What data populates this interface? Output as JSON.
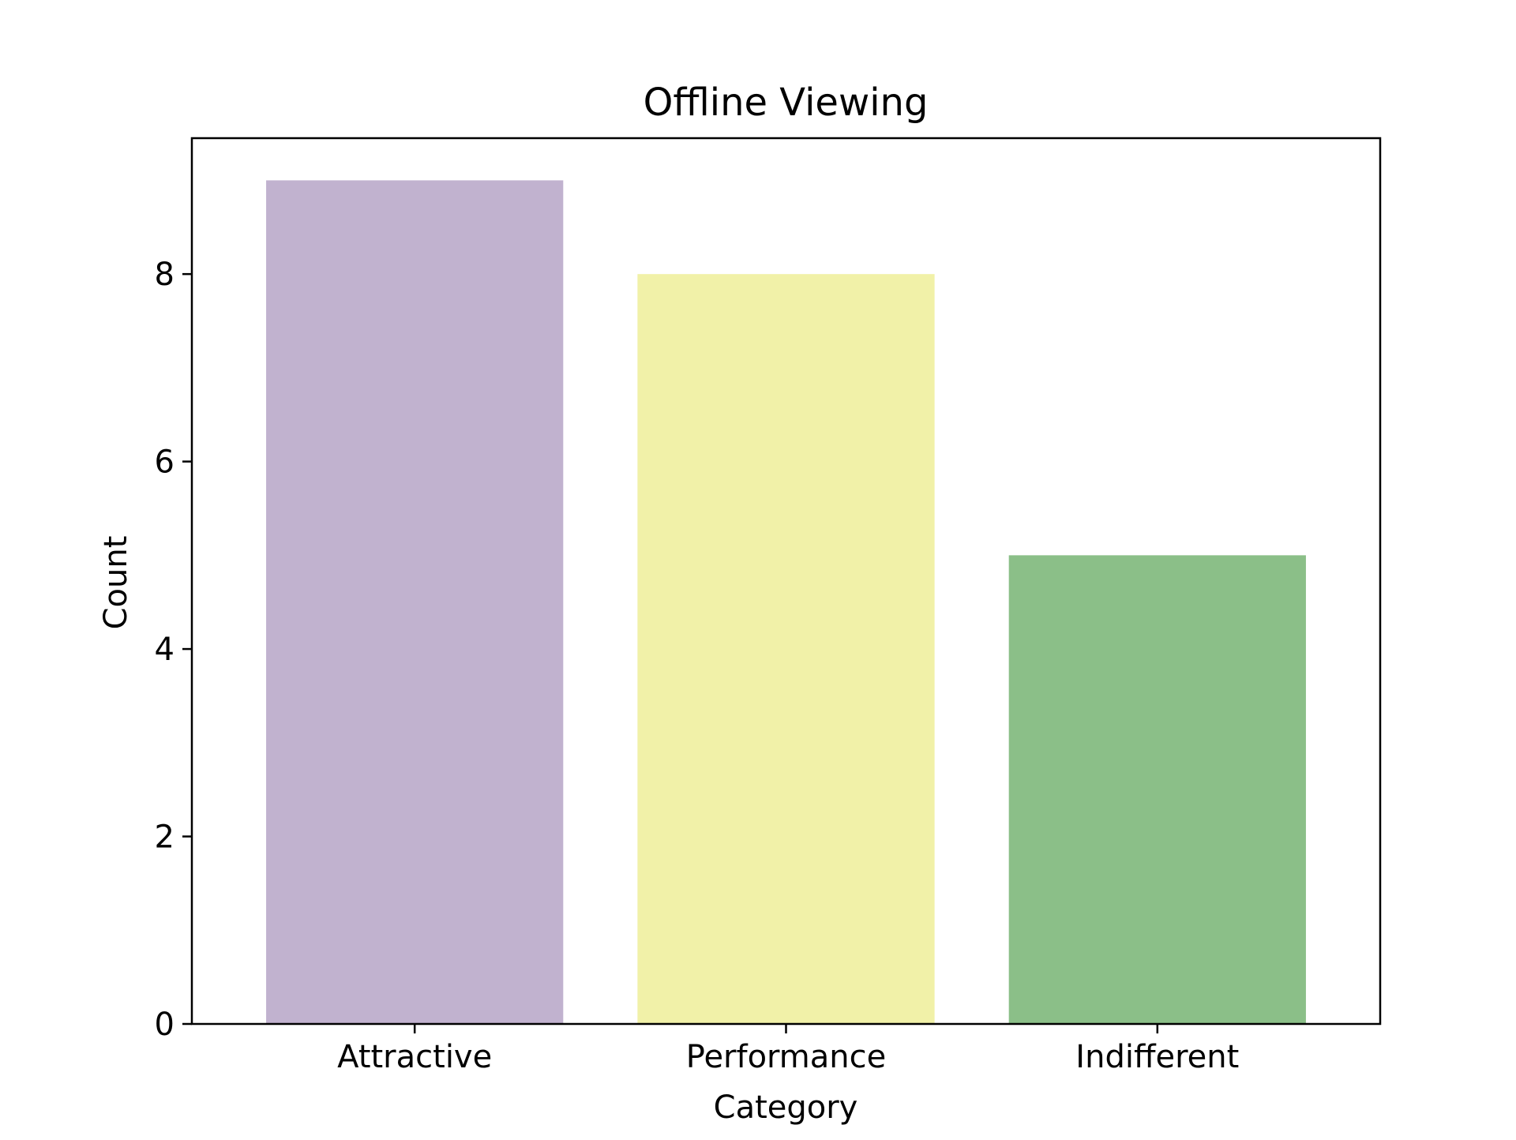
{
  "chart_data": {
    "type": "bar",
    "title": "Offline Viewing",
    "xlabel": "Category",
    "ylabel": "Count",
    "categories": [
      "Attractive",
      "Performance",
      "Indifferent"
    ],
    "values": [
      9,
      8,
      5
    ],
    "colors": [
      "#c1b2cf",
      "#f1f1a8",
      "#8bbf88"
    ],
    "ylim": [
      0,
      9.45
    ],
    "yticks": [
      0,
      2,
      4,
      6,
      8
    ],
    "grid": false,
    "legend": "none"
  }
}
